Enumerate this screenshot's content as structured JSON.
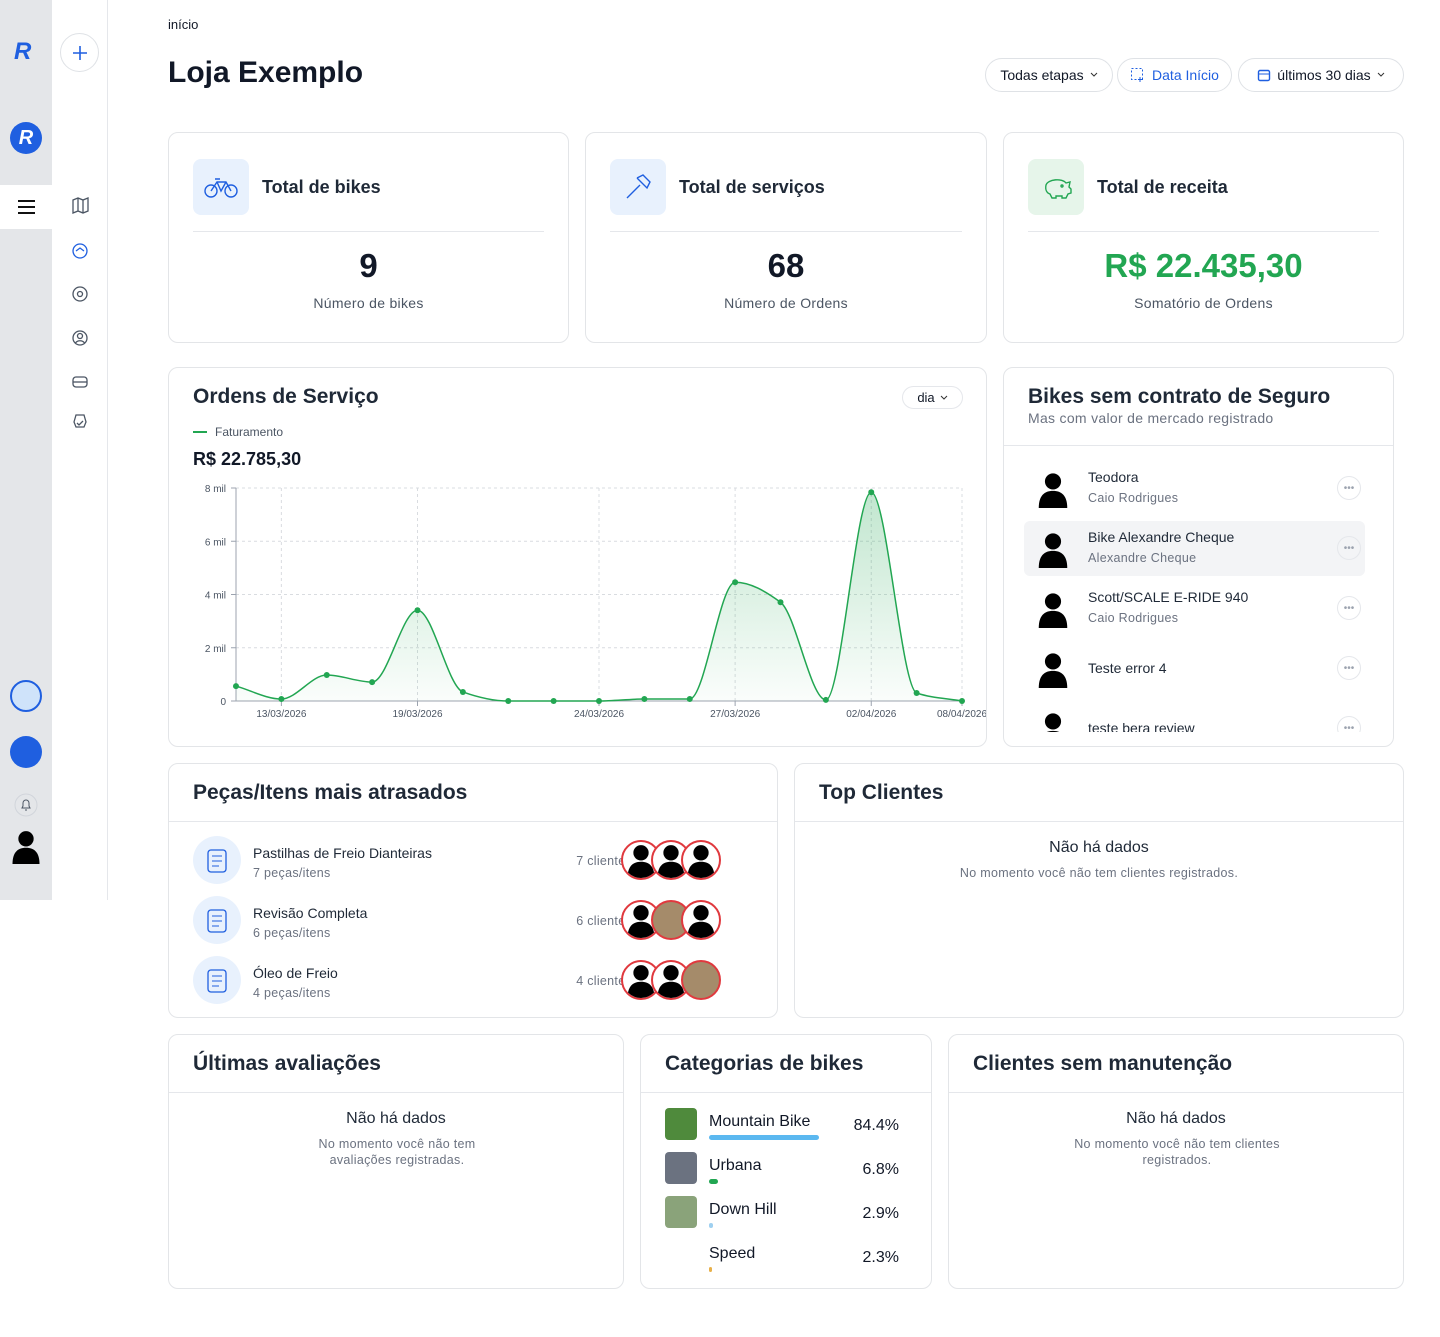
{
  "sidebar": {
    "logo": "R"
  },
  "header": {
    "breadcrumb": "início",
    "title": "Loja Exemplo",
    "filters": [
      "Todas etapas",
      "Data Início",
      "últimos 30 dias"
    ]
  },
  "stats": [
    {
      "title": "Total de bikes",
      "value": "9",
      "caption": "Número de bikes"
    },
    {
      "title": "Total de serviços",
      "value": "68",
      "caption": "Número de Ordens"
    },
    {
      "title": "Total de receita",
      "value": "R$ 22.435,30",
      "caption": "Somatório de Ordens"
    }
  ],
  "chart_data": {
    "type": "line",
    "title": "Ordens de Serviço",
    "period": "dia",
    "total": "R$ 22.785,30",
    "categories": [
      null,
      "13/03/2026",
      null,
      null,
      "19/03/2026",
      null,
      null,
      null,
      "24/03/2026",
      null,
      null,
      "27/03/2026",
      null,
      null,
      "02/04/2026",
      null,
      "08/04/2026"
    ],
    "series": [
      {
        "name": "Faturamento",
        "color": "#22a652",
        "values": [
          560,
          75,
          975,
          710,
          3410,
          340,
          0,
          0,
          0,
          75,
          75,
          4460,
          3710,
          40,
          7840,
          300,
          0
        ]
      }
    ],
    "ylim": [
      0,
      8000
    ],
    "yticks": [
      0,
      {
        "value": 2000,
        "label": "2 mil"
      },
      {
        "value": 4000,
        "label": "4 mil"
      },
      {
        "value": 6000,
        "label": "6 mil"
      },
      {
        "value": 8000,
        "label": "8 mil"
      }
    ],
    "grid": true
  },
  "uninsured_bikes": {
    "title": "Bikes sem contrato de Seguro",
    "subtitle": "Mas com valor de mercado registrado",
    "items": [
      {
        "name": "Teodora",
        "owner": "Caio Rodrigues"
      },
      {
        "name": "Bike Alexandre Cheque",
        "owner": "Alexandre Cheque"
      },
      {
        "name": "Scott/SCALE E-RIDE 940",
        "owner": "Caio Rodrigues"
      },
      {
        "name": "Teste error 4"
      },
      {
        "name": "teste bera review"
      }
    ]
  },
  "late_parts": {
    "title": "Peças/Itens mais atrasados",
    "items": [
      {
        "name": "Pastilhas de Freio Dianteiras",
        "quantity": "7 peças/itens",
        "clients": "7 clientes"
      },
      {
        "name": "Revisão Completa",
        "quantity": "6 peças/itens",
        "clients": "6 clientes"
      },
      {
        "name": "Óleo de Freio",
        "quantity": "4 peças/itens",
        "clients": "4 clientes"
      }
    ]
  },
  "top_clients": {
    "title": "Top Clientes",
    "empty_title": "Não há dados",
    "empty_message": "No momento você não tem clientes registrados."
  },
  "latest_reviews": {
    "title": "Últimas avaliações",
    "empty_title": "Não há dados",
    "empty_message": "No momento você não tem avaliações registradas."
  },
  "bike_categories": {
    "title": "Categorias de bikes",
    "items": [
      {
        "name": "Mountain Bike",
        "value": 84.4,
        "value_label": "84.4%",
        "color": "#5bb8f0"
      },
      {
        "name": "Urbana",
        "value": 6.8,
        "value_label": "6.8%",
        "color": "#22a652"
      },
      {
        "name": "Down Hill",
        "value": 2.9,
        "value_label": "2.9%",
        "color": "#9fd0f0"
      },
      {
        "name": "Speed",
        "value": 2.3,
        "value_label": "2.3%",
        "color": "#e8b04a"
      }
    ]
  },
  "clients_without_maintenance": {
    "title": "Clientes sem manutenção",
    "empty_title": "Não há dados",
    "empty_message": "No momento você não tem clientes registrados."
  }
}
